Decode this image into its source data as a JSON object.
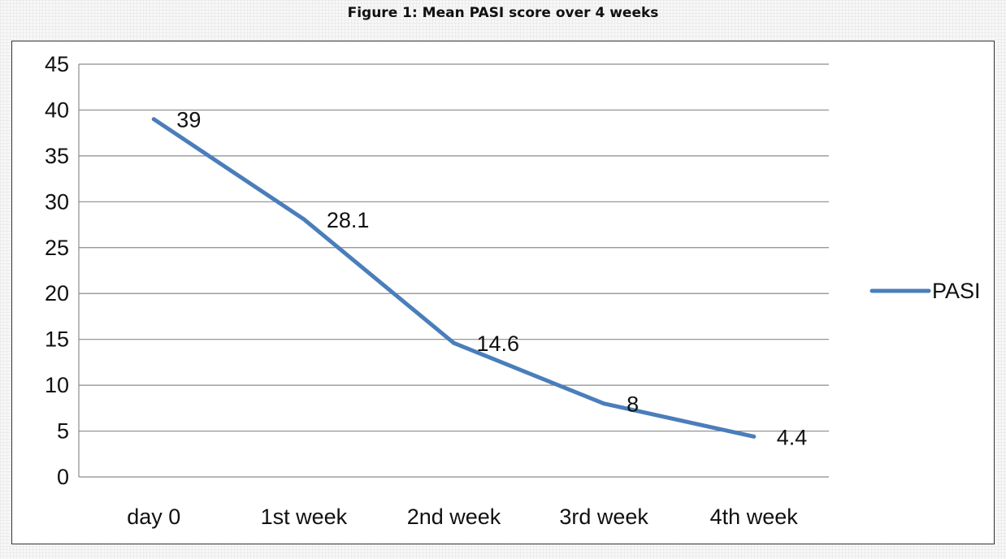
{
  "figure": {
    "title": "Figure 1: Mean PASI score over 4 weeks"
  },
  "chart_data": {
    "type": "line",
    "categories": [
      "day 0",
      "1st week",
      "2nd week",
      "3rd week",
      "4th week"
    ],
    "series": [
      {
        "name": "PASI",
        "values": [
          39,
          28.1,
          14.6,
          8,
          4.4
        ],
        "data_labels": [
          "39",
          "28.1",
          "14.6",
          "8",
          "4.4"
        ],
        "color": "#4a7ebb"
      }
    ],
    "y_ticks": [
      "0",
      "5",
      "10",
      "15",
      "20",
      "25",
      "30",
      "35",
      "40",
      "45"
    ],
    "ylim": [
      0,
      45
    ],
    "grid": true,
    "legend": "right",
    "title": "",
    "xlabel": "",
    "ylabel": ""
  }
}
